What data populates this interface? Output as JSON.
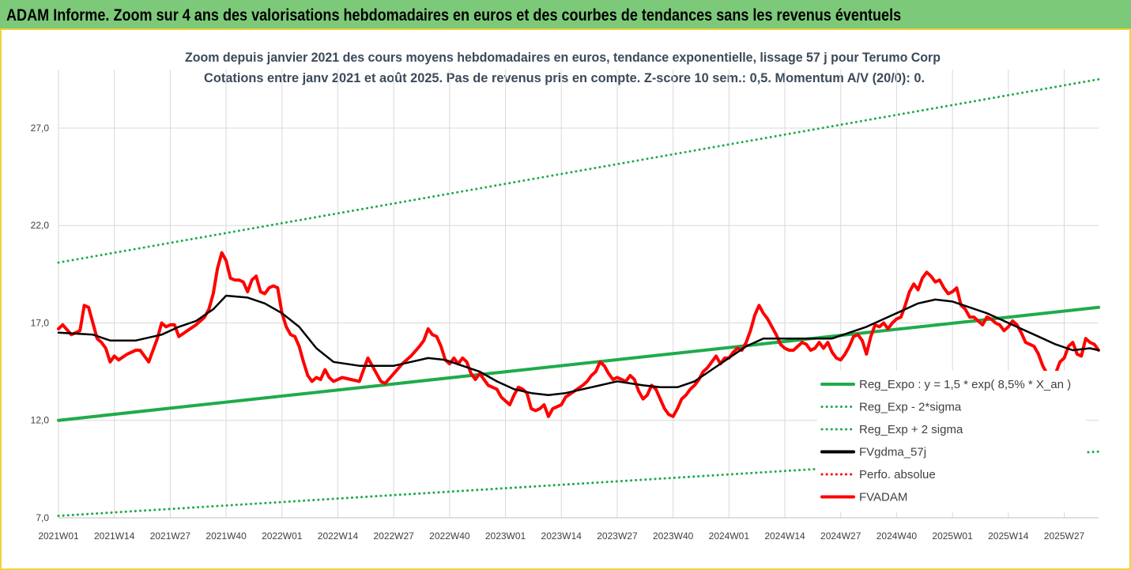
{
  "header": {
    "title": "ADAM Informe. Zoom sur 4 ans des valorisations hebdomadaires en euros et des courbes de tendances sans les revenus éventuels"
  },
  "chart_data": {
    "type": "line",
    "subtitle_line1": "Zoom depuis janvier 2021 des cours moyens hebdomadaires en euros, tendance exponentielle, lissage 57 j pour Terumo Corp",
    "subtitle_line2": "Cotations entre janv 2021 et août 2025.  Pas de revenus pris en compte. Z-score 10 sem.: 0,5. Momentum A/V (20/0): 0.",
    "ylim": [
      7,
      30
    ],
    "y_ticks": [
      "7,0",
      "12,0",
      "17,0",
      "22,0",
      "27,0"
    ],
    "y_tick_values": [
      7,
      12,
      17,
      22,
      27
    ],
    "x_ticks": [
      "2021W01",
      "2021W14",
      "2021W27",
      "2021W40",
      "2022W01",
      "2022W14",
      "2022W27",
      "2022W40",
      "2023W01",
      "2023W14",
      "2023W27",
      "2023W40",
      "2024W01",
      "2024W14",
      "2024W27",
      "2024W40",
      "2025W01",
      "2025W14",
      "2025W27"
    ],
    "x_tick_week_index": [
      0,
      13,
      26,
      39,
      52,
      65,
      78,
      91,
      104,
      117,
      130,
      143,
      156,
      169,
      182,
      195,
      208,
      221,
      234
    ],
    "n_weeks": 243,
    "grid": true,
    "legend_position": "bottom-right",
    "series": [
      {
        "name": "Reg_Expo : y = 1,5 * exp( 8,5% *  X_an )",
        "color": "#1fab4b",
        "style": "solid",
        "points": [
          [
            0,
            12.0
          ],
          [
            242,
            17.8
          ]
        ]
      },
      {
        "name": "Reg_Exp - 2*sigma",
        "color": "#1fab4b",
        "style": "dotted",
        "points": [
          [
            0,
            7.1
          ],
          [
            242,
            10.4
          ]
        ]
      },
      {
        "name": "Reg_Exp + 2 sigma",
        "color": "#1fab4b",
        "style": "dotted",
        "points": [
          [
            0,
            20.1
          ],
          [
            242,
            29.5
          ]
        ]
      },
      {
        "name": "FVgdma_57j",
        "color": "#000000",
        "style": "solid",
        "points": [
          [
            0,
            16.5
          ],
          [
            8,
            16.4
          ],
          [
            12,
            16.1
          ],
          [
            18,
            16.1
          ],
          [
            24,
            16.4
          ],
          [
            28,
            16.8
          ],
          [
            32,
            17.1
          ],
          [
            36,
            17.7
          ],
          [
            39,
            18.4
          ],
          [
            44,
            18.3
          ],
          [
            48,
            18.0
          ],
          [
            52,
            17.5
          ],
          [
            56,
            16.8
          ],
          [
            60,
            15.7
          ],
          [
            64,
            15.0
          ],
          [
            70,
            14.8
          ],
          [
            78,
            14.8
          ],
          [
            82,
            15.0
          ],
          [
            86,
            15.2
          ],
          [
            90,
            15.1
          ],
          [
            94,
            14.8
          ],
          [
            98,
            14.5
          ],
          [
            102,
            14.0
          ],
          [
            106,
            13.6
          ],
          [
            110,
            13.4
          ],
          [
            114,
            13.3
          ],
          [
            118,
            13.4
          ],
          [
            122,
            13.6
          ],
          [
            126,
            13.8
          ],
          [
            130,
            14.0
          ],
          [
            136,
            13.8
          ],
          [
            140,
            13.7
          ],
          [
            144,
            13.7
          ],
          [
            148,
            14.0
          ],
          [
            152,
            14.6
          ],
          [
            156,
            15.2
          ],
          [
            160,
            15.8
          ],
          [
            164,
            16.2
          ],
          [
            168,
            16.2
          ],
          [
            172,
            16.2
          ],
          [
            176,
            16.2
          ],
          [
            180,
            16.2
          ],
          [
            184,
            16.5
          ],
          [
            188,
            16.8
          ],
          [
            192,
            17.2
          ],
          [
            196,
            17.6
          ],
          [
            200,
            18.0
          ],
          [
            204,
            18.2
          ],
          [
            208,
            18.1
          ],
          [
            212,
            17.8
          ],
          [
            216,
            17.5
          ],
          [
            220,
            17.1
          ],
          [
            224,
            16.7
          ],
          [
            228,
            16.3
          ],
          [
            232,
            15.9
          ],
          [
            236,
            15.6
          ],
          [
            240,
            15.7
          ],
          [
            242,
            15.6
          ]
        ]
      },
      {
        "name": "Perfo. absolue",
        "color": "#ff0000",
        "style": "dotted",
        "points": []
      },
      {
        "name": "FVADAM",
        "color": "#ff0000",
        "style": "solid",
        "points": [
          [
            0,
            16.7
          ],
          [
            1,
            16.9
          ],
          [
            3,
            16.4
          ],
          [
            5,
            16.6
          ],
          [
            6,
            17.9
          ],
          [
            7,
            17.8
          ],
          [
            9,
            16.2
          ],
          [
            10,
            16.0
          ],
          [
            11,
            15.7
          ],
          [
            12,
            15.0
          ],
          [
            13,
            15.3
          ],
          [
            14,
            15.1
          ],
          [
            16,
            15.4
          ],
          [
            18,
            15.6
          ],
          [
            19,
            15.6
          ],
          [
            20,
            15.3
          ],
          [
            21,
            15.0
          ],
          [
            22,
            15.6
          ],
          [
            23,
            16.2
          ],
          [
            24,
            17.0
          ],
          [
            25,
            16.8
          ],
          [
            26,
            16.9
          ],
          [
            27,
            16.9
          ],
          [
            28,
            16.3
          ],
          [
            30,
            16.6
          ],
          [
            32,
            16.9
          ],
          [
            34,
            17.3
          ],
          [
            35,
            17.7
          ],
          [
            36,
            18.5
          ],
          [
            37,
            19.8
          ],
          [
            38,
            20.6
          ],
          [
            39,
            20.2
          ],
          [
            40,
            19.3
          ],
          [
            41,
            19.2
          ],
          [
            42,
            19.2
          ],
          [
            43,
            19.1
          ],
          [
            44,
            18.6
          ],
          [
            45,
            19.2
          ],
          [
            46,
            19.4
          ],
          [
            47,
            18.6
          ],
          [
            48,
            18.5
          ],
          [
            49,
            18.8
          ],
          [
            50,
            18.9
          ],
          [
            51,
            18.8
          ],
          [
            52,
            17.5
          ],
          [
            53,
            16.8
          ],
          [
            54,
            16.4
          ],
          [
            55,
            16.3
          ],
          [
            56,
            15.8
          ],
          [
            57,
            15.0
          ],
          [
            58,
            14.3
          ],
          [
            59,
            14.0
          ],
          [
            60,
            14.2
          ],
          [
            61,
            14.1
          ],
          [
            62,
            14.6
          ],
          [
            63,
            14.2
          ],
          [
            64,
            14.0
          ],
          [
            66,
            14.2
          ],
          [
            68,
            14.1
          ],
          [
            70,
            14.0
          ],
          [
            71,
            14.6
          ],
          [
            72,
            15.2
          ],
          [
            73,
            14.8
          ],
          [
            74,
            14.4
          ],
          [
            75,
            14.0
          ],
          [
            76,
            13.9
          ],
          [
            78,
            14.4
          ],
          [
            80,
            14.9
          ],
          [
            82,
            15.3
          ],
          [
            84,
            15.8
          ],
          [
            85,
            16.1
          ],
          [
            86,
            16.7
          ],
          [
            87,
            16.4
          ],
          [
            88,
            16.3
          ],
          [
            89,
            15.8
          ],
          [
            90,
            15.1
          ],
          [
            91,
            14.9
          ],
          [
            92,
            15.2
          ],
          [
            93,
            14.9
          ],
          [
            94,
            15.2
          ],
          [
            95,
            15.0
          ],
          [
            96,
            14.4
          ],
          [
            97,
            14.1
          ],
          [
            98,
            14.4
          ],
          [
            100,
            13.8
          ],
          [
            102,
            13.6
          ],
          [
            103,
            13.2
          ],
          [
            105,
            12.8
          ],
          [
            106,
            13.3
          ],
          [
            107,
            13.7
          ],
          [
            108,
            13.6
          ],
          [
            109,
            13.4
          ],
          [
            110,
            12.6
          ],
          [
            111,
            12.5
          ],
          [
            112,
            12.6
          ],
          [
            113,
            12.8
          ],
          [
            114,
            12.2
          ],
          [
            115,
            12.6
          ],
          [
            116,
            12.7
          ],
          [
            117,
            12.8
          ],
          [
            118,
            13.2
          ],
          [
            120,
            13.5
          ],
          [
            122,
            13.8
          ],
          [
            123,
            14.0
          ],
          [
            124,
            14.3
          ],
          [
            125,
            14.5
          ],
          [
            126,
            15.0
          ],
          [
            127,
            14.8
          ],
          [
            128,
            14.4
          ],
          [
            129,
            14.1
          ],
          [
            130,
            14.2
          ],
          [
            132,
            14.0
          ],
          [
            133,
            14.3
          ],
          [
            134,
            14.1
          ],
          [
            135,
            13.5
          ],
          [
            136,
            13.1
          ],
          [
            137,
            13.3
          ],
          [
            138,
            13.8
          ],
          [
            139,
            13.6
          ],
          [
            140,
            13.1
          ],
          [
            141,
            12.6
          ],
          [
            142,
            12.3
          ],
          [
            143,
            12.2
          ],
          [
            144,
            12.6
          ],
          [
            145,
            13.1
          ],
          [
            146,
            13.3
          ],
          [
            147,
            13.6
          ],
          [
            148,
            13.8
          ],
          [
            149,
            14.1
          ],
          [
            150,
            14.5
          ],
          [
            151,
            14.7
          ],
          [
            152,
            15.0
          ],
          [
            153,
            15.3
          ],
          [
            154,
            14.9
          ],
          [
            155,
            15.2
          ],
          [
            156,
            15.2
          ],
          [
            157,
            15.5
          ],
          [
            158,
            15.7
          ],
          [
            159,
            15.6
          ],
          [
            160,
            16.0
          ],
          [
            161,
            16.6
          ],
          [
            162,
            17.4
          ],
          [
            163,
            17.9
          ],
          [
            164,
            17.5
          ],
          [
            165,
            17.2
          ],
          [
            166,
            16.8
          ],
          [
            167,
            16.4
          ],
          [
            168,
            15.9
          ],
          [
            169,
            15.7
          ],
          [
            170,
            15.6
          ],
          [
            171,
            15.6
          ],
          [
            172,
            15.8
          ],
          [
            173,
            16.0
          ],
          [
            174,
            15.9
          ],
          [
            175,
            15.6
          ],
          [
            176,
            15.7
          ],
          [
            177,
            16.0
          ],
          [
            178,
            15.7
          ],
          [
            179,
            16.0
          ],
          [
            180,
            15.5
          ],
          [
            181,
            15.2
          ],
          [
            182,
            15.1
          ],
          [
            183,
            15.4
          ],
          [
            184,
            15.8
          ],
          [
            185,
            16.3
          ],
          [
            186,
            16.4
          ],
          [
            187,
            16.1
          ],
          [
            188,
            15.4
          ],
          [
            189,
            16.3
          ],
          [
            190,
            16.9
          ],
          [
            191,
            16.8
          ],
          [
            192,
            17.0
          ],
          [
            193,
            16.7
          ],
          [
            194,
            17.0
          ],
          [
            195,
            17.2
          ],
          [
            196,
            17.3
          ],
          [
            197,
            17.9
          ],
          [
            198,
            18.6
          ],
          [
            199,
            19.0
          ],
          [
            200,
            18.7
          ],
          [
            201,
            19.3
          ],
          [
            202,
            19.6
          ],
          [
            203,
            19.4
          ],
          [
            204,
            19.1
          ],
          [
            205,
            19.2
          ],
          [
            206,
            18.8
          ],
          [
            207,
            18.5
          ],
          [
            208,
            18.6
          ],
          [
            209,
            18.8
          ],
          [
            210,
            17.9
          ],
          [
            211,
            17.7
          ],
          [
            212,
            17.3
          ],
          [
            213,
            17.3
          ],
          [
            214,
            17.1
          ],
          [
            215,
            16.9
          ],
          [
            216,
            17.3
          ],
          [
            217,
            17.2
          ],
          [
            218,
            17.0
          ],
          [
            219,
            16.9
          ],
          [
            220,
            16.6
          ],
          [
            221,
            16.8
          ],
          [
            222,
            17.1
          ],
          [
            223,
            16.9
          ],
          [
            224,
            16.5
          ],
          [
            225,
            16.0
          ],
          [
            226,
            15.9
          ],
          [
            227,
            15.8
          ],
          [
            228,
            15.4
          ],
          [
            229,
            14.8
          ],
          [
            230,
            14.4
          ],
          [
            231,
            14.3
          ],
          [
            232,
            14.4
          ],
          [
            233,
            15.0
          ],
          [
            234,
            15.2
          ],
          [
            235,
            15.8
          ],
          [
            236,
            16.0
          ],
          [
            237,
            15.4
          ],
          [
            238,
            15.3
          ],
          [
            239,
            16.2
          ],
          [
            240,
            16.0
          ],
          [
            241,
            15.9
          ],
          [
            242,
            15.6
          ]
        ]
      }
    ]
  }
}
